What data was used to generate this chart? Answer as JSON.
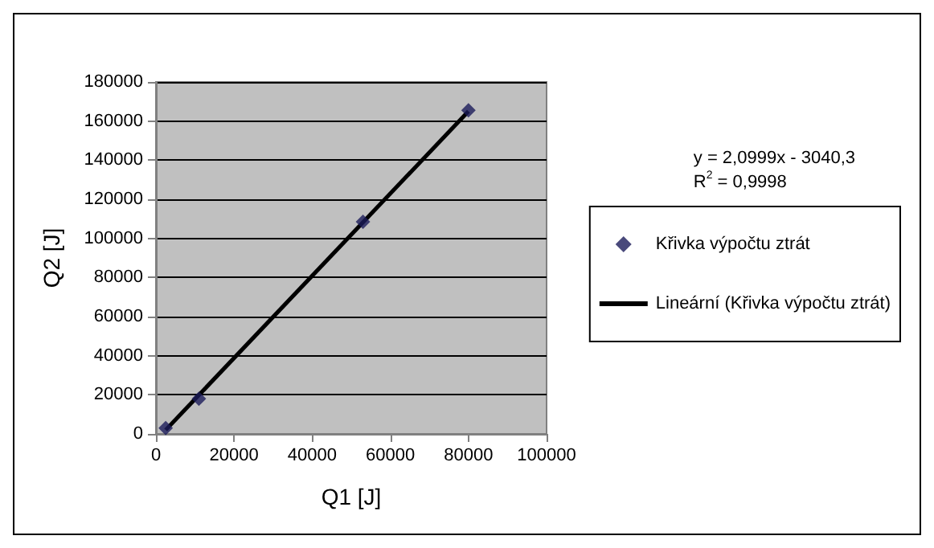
{
  "chart_data": {
    "type": "scatter",
    "xlabel": "Q1 [J]",
    "ylabel": "Q2 [J]",
    "series": [
      {
        "name": "Křivka výpočtu ztrát",
        "color": "#1c1c5a",
        "marker": "diamond",
        "x": [
          2500,
          11000,
          53000,
          80000
        ],
        "values": [
          3000,
          18000,
          108500,
          165500
        ]
      },
      {
        "name": "Lineární (Křivka výpočtu ztrát)",
        "type": "line",
        "color": "#000000",
        "marker": "none",
        "x": [
          2500,
          80000
        ],
        "values": [
          2000,
          165000
        ]
      }
    ],
    "annotations": [
      "y = 2,0999x - 3040,3",
      "R$^{2}$ = 0,9998"
    ],
    "xlim": [
      0,
      100000
    ],
    "xticks": [
      0,
      20000,
      40000,
      60000,
      80000,
      100000
    ],
    "ylim": [
      0,
      180000
    ],
    "yticks": [
      0,
      20000,
      40000,
      60000,
      80000,
      100000,
      120000,
      140000,
      160000,
      180000
    ],
    "grid": "y",
    "legend": "right"
  }
}
